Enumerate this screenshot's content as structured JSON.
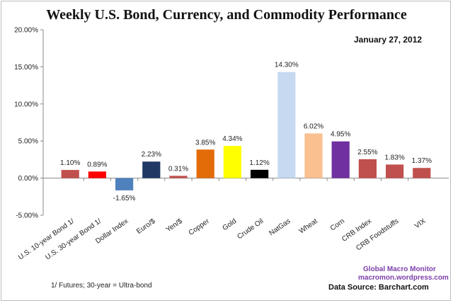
{
  "chart_data": {
    "type": "bar",
    "title": "Weekly U.S. Bond, Currency, and Commodity Performance",
    "subtitle": "January 27, 2012",
    "xlabel": "",
    "ylabel": "",
    "ylim": [
      -5,
      20
    ],
    "yticks": [
      20,
      15,
      10,
      5,
      0,
      -5
    ],
    "ytick_labels": [
      "20.00%",
      "15.00%",
      "10.00%",
      "5.00%",
      "0.00%",
      "-5.00%"
    ],
    "grid": false,
    "categories": [
      "U.S. 10-year Bond 1/",
      "U.S. 30-year Bond 1/",
      "Dollar Index",
      "Euro/$",
      "Yen/$",
      "Copper",
      "Gold",
      "Crude Oil",
      "NatGas",
      "Wheat",
      "Corn",
      "CRB Index",
      "CRB Foodstuffs",
      "VIX"
    ],
    "values": [
      1.1,
      0.89,
      -1.65,
      2.23,
      0.31,
      3.85,
      4.34,
      1.12,
      14.3,
      6.02,
      4.95,
      2.55,
      1.83,
      1.37
    ],
    "data_labels": [
      "1.10%",
      "0.89%",
      "-1.65%",
      "2.23%",
      "0.31%",
      "3.85%",
      "4.34%",
      "1.12%",
      "14.30%",
      "6.02%",
      "4.95%",
      "2.55%",
      "1.83%",
      "1.37%"
    ],
    "colors": [
      "#c0504d",
      "#ff0000",
      "#4f81bd",
      "#1f3864",
      "#c0504d",
      "#e36c09",
      "#ffff00",
      "#000000",
      "#c6d9f1",
      "#fac090",
      "#7030a0",
      "#c0504d",
      "#c0504d",
      "#c0504d"
    ],
    "footnote": "1/ Futures; 30-year = Ultra-bond",
    "brand_name": "Global Macro Monitor",
    "brand_url": "macromon.wordpress.com",
    "source": "Data Source:  Barchart.com",
    "accent_color": "#7b3fa8"
  }
}
